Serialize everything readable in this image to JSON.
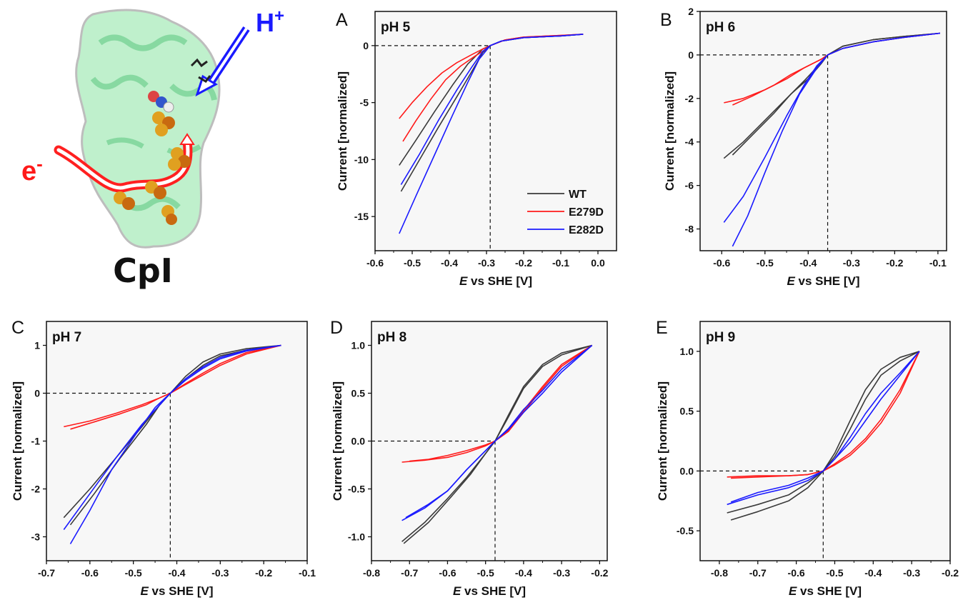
{
  "colors": {
    "WT": "#3a3a3a",
    "E279D": "#ff1a1a",
    "E282D": "#1a1aff",
    "protein": "#7fdca0",
    "sphere_fe": "#e0a020",
    "sphere_s": "#c86a10"
  },
  "illustration": {
    "label": "CpI",
    "electron_label": "e",
    "electron_sup": "-",
    "proton_label": "H",
    "proton_sup": "+"
  },
  "legend": [
    "WT",
    "E279D",
    "E282D"
  ],
  "chart_data": [
    {
      "id": "A",
      "type": "line",
      "panel": "A",
      "annotation": "pH 5",
      "xlabel_italic": "E",
      "xlabel_rest": " vs SHE [V]",
      "ylabel": "Current [normalized]",
      "xlim": [
        -0.6,
        0.05
      ],
      "ylim": [
        -18,
        3
      ],
      "xticks": [
        -0.6,
        -0.5,
        -0.4,
        -0.3,
        -0.2,
        -0.1,
        0.0
      ],
      "xtick_labels": [
        "-0.6",
        "-0.5",
        "-0.4",
        "-0.3",
        "-0.2",
        "-0.1",
        "0.0"
      ],
      "yticks": [
        0,
        -5,
        -10,
        -15
      ],
      "ytick_labels": [
        "0",
        "-5",
        "-10",
        "-15"
      ],
      "crossing": [
        -0.29,
        0
      ],
      "legend_position": "bottom-right",
      "series": [
        {
          "name": "WT",
          "x": [
            -0.535,
            -0.49,
            -0.44,
            -0.39,
            -0.35,
            -0.31,
            -0.29,
            -0.26,
            -0.2,
            -0.1,
            -0.04
          ],
          "y": [
            -10.5,
            -8.3,
            -5.8,
            -3.4,
            -1.6,
            -0.3,
            0.0,
            0.4,
            0.7,
            0.85,
            1.0
          ]
        },
        {
          "name": "WT",
          "x": [
            -0.53,
            -0.48,
            -0.43,
            -0.38,
            -0.34,
            -0.31,
            -0.29,
            -0.26,
            -0.2,
            -0.1,
            -0.04
          ],
          "y": [
            -12.8,
            -10.0,
            -7.2,
            -4.5,
            -2.3,
            -0.6,
            0.0,
            0.4,
            0.7,
            0.85,
            1.0
          ]
        },
        {
          "name": "E279D",
          "x": [
            -0.535,
            -0.5,
            -0.46,
            -0.42,
            -0.38,
            -0.34,
            -0.31,
            -0.29,
            -0.25,
            -0.2,
            -0.1,
            -0.04
          ],
          "y": [
            -6.4,
            -5.0,
            -3.6,
            -2.4,
            -1.5,
            -0.8,
            -0.3,
            0.0,
            0.5,
            0.75,
            0.9,
            1.0
          ]
        },
        {
          "name": "E279D",
          "x": [
            -0.525,
            -0.49,
            -0.45,
            -0.41,
            -0.37,
            -0.33,
            -0.3,
            -0.29,
            -0.25,
            -0.2,
            -0.1,
            -0.04
          ],
          "y": [
            -8.4,
            -6.6,
            -4.7,
            -3.0,
            -1.8,
            -0.9,
            -0.3,
            0.0,
            0.5,
            0.75,
            0.9,
            1.0
          ]
        },
        {
          "name": "E282D",
          "x": [
            -0.53,
            -0.48,
            -0.43,
            -0.38,
            -0.34,
            -0.31,
            -0.29,
            -0.26,
            -0.2,
            -0.1,
            -0.04
          ],
          "y": [
            -12.2,
            -9.5,
            -6.6,
            -3.9,
            -1.9,
            -0.5,
            0.0,
            0.4,
            0.7,
            0.85,
            1.0
          ]
        },
        {
          "name": "E282D",
          "x": [
            -0.535,
            -0.49,
            -0.44,
            -0.39,
            -0.35,
            -0.32,
            -0.29,
            -0.26,
            -0.2,
            -0.1,
            -0.04
          ],
          "y": [
            -16.5,
            -13.2,
            -9.6,
            -6.0,
            -3.2,
            -1.2,
            0.0,
            0.4,
            0.7,
            0.85,
            1.0
          ]
        }
      ]
    },
    {
      "id": "B",
      "type": "line",
      "panel": "B",
      "annotation": "pH 6",
      "xlabel_italic": "E",
      "xlabel_rest": " vs SHE [V]",
      "ylabel": "Current [normalized]",
      "xlim": [
        -0.65,
        -0.08
      ],
      "ylim": [
        -9,
        2
      ],
      "xticks": [
        -0.6,
        -0.5,
        -0.4,
        -0.3,
        -0.2,
        -0.1
      ],
      "xtick_labels": [
        "-0.6",
        "-0.5",
        "-0.4",
        "-0.3",
        "-0.2",
        "-0.1"
      ],
      "yticks": [
        2,
        0,
        -2,
        -4,
        -6,
        -8
      ],
      "ytick_labels": [
        "2",
        "0",
        "-2",
        "-4",
        "-6",
        "-8"
      ],
      "crossing": [
        -0.355,
        0
      ],
      "series": [
        {
          "name": "WT",
          "x": [
            -0.595,
            -0.55,
            -0.5,
            -0.45,
            -0.41,
            -0.37,
            -0.355,
            -0.32,
            -0.25,
            -0.18,
            -0.095
          ],
          "y": [
            -4.75,
            -4.0,
            -3.0,
            -2.0,
            -1.2,
            -0.35,
            0.0,
            0.4,
            0.7,
            0.85,
            1.0
          ]
        },
        {
          "name": "WT",
          "x": [
            -0.575,
            -0.53,
            -0.48,
            -0.44,
            -0.4,
            -0.37,
            -0.355,
            -0.32,
            -0.25,
            -0.18,
            -0.095
          ],
          "y": [
            -4.6,
            -3.7,
            -2.7,
            -1.8,
            -1.1,
            -0.4,
            0.0,
            0.4,
            0.7,
            0.85,
            1.0
          ]
        },
        {
          "name": "E279D",
          "x": [
            -0.595,
            -0.55,
            -0.5,
            -0.45,
            -0.41,
            -0.37,
            -0.355,
            -0.32,
            -0.25,
            -0.18,
            -0.095
          ],
          "y": [
            -2.2,
            -2.0,
            -1.6,
            -1.1,
            -0.6,
            -0.2,
            0.0,
            0.3,
            0.6,
            0.8,
            1.0
          ]
        },
        {
          "name": "E279D",
          "x": [
            -0.575,
            -0.53,
            -0.48,
            -0.44,
            -0.4,
            -0.37,
            -0.355,
            -0.32,
            -0.25,
            -0.18,
            -0.095
          ],
          "y": [
            -2.3,
            -1.9,
            -1.4,
            -0.9,
            -0.5,
            -0.2,
            0.0,
            0.3,
            0.6,
            0.8,
            1.0
          ]
        },
        {
          "name": "E282D",
          "x": [
            -0.595,
            -0.55,
            -0.5,
            -0.45,
            -0.41,
            -0.38,
            -0.355,
            -0.32,
            -0.25,
            -0.18,
            -0.095
          ],
          "y": [
            -7.7,
            -6.5,
            -4.7,
            -2.8,
            -1.4,
            -0.5,
            0.0,
            0.3,
            0.6,
            0.8,
            1.0
          ]
        },
        {
          "name": "E282D",
          "x": [
            -0.575,
            -0.54,
            -0.5,
            -0.46,
            -0.42,
            -0.38,
            -0.355,
            -0.32,
            -0.25,
            -0.18,
            -0.095
          ],
          "y": [
            -8.8,
            -7.4,
            -5.4,
            -3.5,
            -1.8,
            -0.6,
            0.0,
            0.3,
            0.6,
            0.8,
            1.0
          ]
        }
      ]
    },
    {
      "id": "C",
      "type": "line",
      "panel": "C",
      "annotation": "pH 7",
      "xlabel_italic": "E",
      "xlabel_rest": " vs SHE [V]",
      "ylabel": "Current [normalized]",
      "xlim": [
        -0.7,
        -0.1
      ],
      "ylim": [
        -3.5,
        1.5
      ],
      "xticks": [
        -0.7,
        -0.6,
        -0.5,
        -0.4,
        -0.3,
        -0.2,
        -0.1
      ],
      "xtick_labels": [
        "-0.7",
        "-0.6",
        "-0.5",
        "-0.4",
        "-0.3",
        "-0.2",
        "-0.1"
      ],
      "yticks": [
        1,
        0,
        -1,
        -2,
        -3
      ],
      "ytick_labels": [
        "1",
        "0",
        "-1",
        "-2",
        "-3"
      ],
      "crossing": [
        -0.415,
        0
      ],
      "series": [
        {
          "name": "WT",
          "x": [
            -0.66,
            -0.6,
            -0.54,
            -0.48,
            -0.44,
            -0.415,
            -0.38,
            -0.34,
            -0.3,
            -0.24,
            -0.16
          ],
          "y": [
            -2.6,
            -2.0,
            -1.35,
            -0.7,
            -0.25,
            0.0,
            0.35,
            0.65,
            0.82,
            0.93,
            1.0
          ]
        },
        {
          "name": "WT",
          "x": [
            -0.645,
            -0.59,
            -0.53,
            -0.47,
            -0.44,
            -0.415,
            -0.38,
            -0.34,
            -0.3,
            -0.24,
            -0.16
          ],
          "y": [
            -2.75,
            -2.1,
            -1.35,
            -0.65,
            -0.25,
            0.0,
            0.3,
            0.58,
            0.78,
            0.9,
            1.0
          ]
        },
        {
          "name": "E279D",
          "x": [
            -0.66,
            -0.6,
            -0.54,
            -0.48,
            -0.44,
            -0.415,
            -0.38,
            -0.34,
            -0.3,
            -0.24,
            -0.16
          ],
          "y": [
            -0.7,
            -0.58,
            -0.42,
            -0.24,
            -0.1,
            0.0,
            0.18,
            0.38,
            0.58,
            0.82,
            1.0
          ]
        },
        {
          "name": "E279D",
          "x": [
            -0.645,
            -0.59,
            -0.53,
            -0.47,
            -0.44,
            -0.415,
            -0.38,
            -0.34,
            -0.3,
            -0.24,
            -0.16
          ],
          "y": [
            -0.75,
            -0.6,
            -0.43,
            -0.24,
            -0.1,
            0.0,
            0.2,
            0.42,
            0.62,
            0.85,
            1.0
          ]
        },
        {
          "name": "E282D",
          "x": [
            -0.66,
            -0.6,
            -0.54,
            -0.48,
            -0.44,
            -0.415,
            -0.38,
            -0.34,
            -0.3,
            -0.24,
            -0.16
          ],
          "y": [
            -2.85,
            -2.1,
            -1.35,
            -0.65,
            -0.25,
            0.0,
            0.3,
            0.55,
            0.75,
            0.9,
            1.0
          ]
        },
        {
          "name": "E282D",
          "x": [
            -0.645,
            -0.6,
            -0.55,
            -0.49,
            -0.45,
            -0.415,
            -0.38,
            -0.34,
            -0.3,
            -0.24,
            -0.16
          ],
          "y": [
            -3.15,
            -2.45,
            -1.6,
            -0.8,
            -0.3,
            0.0,
            0.27,
            0.52,
            0.72,
            0.88,
            1.0
          ]
        }
      ]
    },
    {
      "id": "D",
      "type": "line",
      "panel": "D",
      "annotation": "pH 8",
      "xlabel_italic": "E",
      "xlabel_rest": " vs SHE [V]",
      "ylabel": "Current [normalized]",
      "xlim": [
        -0.8,
        -0.18
      ],
      "ylim": [
        -1.25,
        1.25
      ],
      "xticks": [
        -0.8,
        -0.7,
        -0.6,
        -0.5,
        -0.4,
        -0.3,
        -0.2
      ],
      "xtick_labels": [
        "-0.8",
        "-0.7",
        "-0.6",
        "-0.5",
        "-0.4",
        "-0.3",
        "-0.2"
      ],
      "yticks": [
        1.0,
        0.5,
        0.0,
        -0.5,
        -1.0
      ],
      "ytick_labels": [
        "1.0",
        "0.5",
        "0.0",
        "-0.5",
        "-1.0"
      ],
      "crossing": [
        -0.475,
        0
      ],
      "series": [
        {
          "name": "WT",
          "x": [
            -0.72,
            -0.66,
            -0.6,
            -0.55,
            -0.5,
            -0.475,
            -0.44,
            -0.4,
            -0.35,
            -0.3,
            -0.22
          ],
          "y": [
            -1.05,
            -0.85,
            -0.6,
            -0.38,
            -0.13,
            0.0,
            0.25,
            0.55,
            0.78,
            0.9,
            1.0
          ]
        },
        {
          "name": "WT",
          "x": [
            -0.715,
            -0.65,
            -0.59,
            -0.54,
            -0.5,
            -0.475,
            -0.44,
            -0.4,
            -0.35,
            -0.3,
            -0.22
          ],
          "y": [
            -1.07,
            -0.85,
            -0.58,
            -0.35,
            -0.13,
            0.0,
            0.27,
            0.57,
            0.8,
            0.92,
            1.0
          ]
        },
        {
          "name": "E279D",
          "x": [
            -0.72,
            -0.66,
            -0.6,
            -0.55,
            -0.5,
            -0.475,
            -0.44,
            -0.4,
            -0.35,
            -0.3,
            -0.22
          ],
          "y": [
            -0.22,
            -0.2,
            -0.17,
            -0.12,
            -0.05,
            0.0,
            0.1,
            0.3,
            0.55,
            0.78,
            1.0
          ]
        },
        {
          "name": "E279D",
          "x": [
            -0.7,
            -0.65,
            -0.6,
            -0.55,
            -0.5,
            -0.475,
            -0.44,
            -0.4,
            -0.35,
            -0.3,
            -0.22
          ],
          "y": [
            -0.21,
            -0.19,
            -0.15,
            -0.1,
            -0.04,
            0.0,
            0.11,
            0.32,
            0.57,
            0.8,
            1.0
          ]
        },
        {
          "name": "E282D",
          "x": [
            -0.72,
            -0.66,
            -0.6,
            -0.55,
            -0.5,
            -0.475,
            -0.44,
            -0.4,
            -0.35,
            -0.3,
            -0.22
          ],
          "y": [
            -0.83,
            -0.7,
            -0.52,
            -0.3,
            -0.1,
            0.0,
            0.12,
            0.3,
            0.5,
            0.72,
            1.0
          ]
        },
        {
          "name": "E282D",
          "x": [
            -0.71,
            -0.65,
            -0.6,
            -0.55,
            -0.5,
            -0.475,
            -0.44,
            -0.4,
            -0.35,
            -0.3,
            -0.22
          ],
          "y": [
            -0.8,
            -0.66,
            -0.52,
            -0.3,
            -0.1,
            0.0,
            0.13,
            0.33,
            0.53,
            0.75,
            1.0
          ]
        }
      ]
    },
    {
      "id": "E",
      "type": "line",
      "panel": "E",
      "annotation": "pH 9",
      "xlabel_italic": "E",
      "xlabel_rest": " vs SHE [V]",
      "ylabel": "Current [normalized]",
      "xlim": [
        -0.85,
        -0.2
      ],
      "ylim": [
        -0.75,
        1.25
      ],
      "xticks": [
        -0.8,
        -0.7,
        -0.6,
        -0.5,
        -0.4,
        -0.3,
        -0.2
      ],
      "xtick_labels": [
        "-0.8",
        "-0.7",
        "-0.6",
        "-0.5",
        "-0.4",
        "-0.3",
        "-0.2"
      ],
      "yticks": [
        1.0,
        0.5,
        0.0,
        -0.5
      ],
      "ytick_labels": [
        "1.0",
        "0.5",
        "0.0",
        "-0.5"
      ],
      "crossing": [
        -0.53,
        0
      ],
      "series": [
        {
          "name": "WT",
          "x": [
            -0.78,
            -0.7,
            -0.62,
            -0.57,
            -0.53,
            -0.5,
            -0.46,
            -0.42,
            -0.38,
            -0.33,
            -0.28
          ],
          "y": [
            -0.35,
            -0.28,
            -0.2,
            -0.1,
            0.0,
            0.15,
            0.42,
            0.68,
            0.85,
            0.95,
            1.0
          ]
        },
        {
          "name": "WT",
          "x": [
            -0.77,
            -0.7,
            -0.62,
            -0.57,
            -0.53,
            -0.5,
            -0.46,
            -0.42,
            -0.38,
            -0.33,
            -0.28
          ],
          "y": [
            -0.41,
            -0.34,
            -0.25,
            -0.14,
            0.0,
            0.12,
            0.35,
            0.6,
            0.8,
            0.92,
            1.0
          ]
        },
        {
          "name": "E279D",
          "x": [
            -0.78,
            -0.7,
            -0.62,
            -0.57,
            -0.53,
            -0.5,
            -0.46,
            -0.42,
            -0.38,
            -0.33,
            -0.28
          ],
          "y": [
            -0.05,
            -0.04,
            -0.04,
            -0.03,
            0.0,
            0.05,
            0.13,
            0.25,
            0.4,
            0.65,
            1.0
          ]
        },
        {
          "name": "E279D",
          "x": [
            -0.77,
            -0.7,
            -0.62,
            -0.57,
            -0.53,
            -0.5,
            -0.46,
            -0.42,
            -0.38,
            -0.33,
            -0.28
          ],
          "y": [
            -0.06,
            -0.05,
            -0.04,
            -0.03,
            0.0,
            0.06,
            0.15,
            0.27,
            0.43,
            0.68,
            1.0
          ]
        },
        {
          "name": "E282D",
          "x": [
            -0.78,
            -0.7,
            -0.62,
            -0.57,
            -0.53,
            -0.5,
            -0.46,
            -0.42,
            -0.38,
            -0.33,
            -0.28
          ],
          "y": [
            -0.28,
            -0.2,
            -0.14,
            -0.08,
            0.0,
            0.1,
            0.28,
            0.48,
            0.65,
            0.82,
            1.0
          ]
        },
        {
          "name": "E282D",
          "x": [
            -0.77,
            -0.7,
            -0.62,
            -0.57,
            -0.53,
            -0.5,
            -0.46,
            -0.42,
            -0.38,
            -0.33,
            -0.28
          ],
          "y": [
            -0.26,
            -0.18,
            -0.12,
            -0.06,
            0.0,
            0.1,
            0.24,
            0.42,
            0.6,
            0.8,
            1.0
          ]
        }
      ]
    }
  ]
}
